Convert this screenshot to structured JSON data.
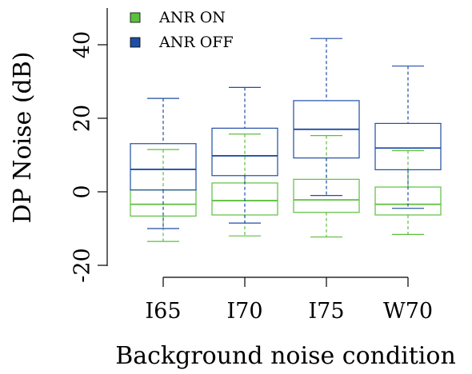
{
  "chart_data": {
    "type": "boxplot",
    "xlabel": "Background noise condition",
    "ylabel": "DP Noise (dB)",
    "ylim": [
      -21,
      50
    ],
    "yticks": [
      -20,
      0,
      20,
      40
    ],
    "categories": [
      "I65",
      "I70",
      "I75",
      "W70"
    ],
    "legend": {
      "position": "top-left"
    },
    "series": [
      {
        "name": "ANR ON",
        "color": "#5cbf3e",
        "boxes": [
          {
            "whisker_low": -13.5,
            "q1": -6.6,
            "median": -3.4,
            "q3": 0.5,
            "whisker_high": 11.5
          },
          {
            "whisker_low": -12.0,
            "q1": -6.3,
            "median": -2.4,
            "q3": 2.4,
            "whisker_high": 15.7
          },
          {
            "whisker_low": -12.3,
            "q1": -5.6,
            "median": -2.2,
            "q3": 3.4,
            "whisker_high": 15.3
          },
          {
            "whisker_low": -11.6,
            "q1": -6.3,
            "median": -3.4,
            "q3": 1.3,
            "whisker_high": 11.2
          }
        ]
      },
      {
        "name": "ANR OFF",
        "color": "#1f4ea3",
        "boxes": [
          {
            "whisker_low": -10.0,
            "q1": 0.5,
            "median": 6.1,
            "q3": 13.1,
            "whisker_high": 25.4
          },
          {
            "whisker_low": -8.5,
            "q1": 4.4,
            "median": 9.8,
            "q3": 17.3,
            "whisker_high": 28.4
          },
          {
            "whisker_low": -1.0,
            "q1": 9.2,
            "median": 17.0,
            "q3": 24.8,
            "whisker_high": 41.7
          },
          {
            "whisker_low": -4.5,
            "q1": 6.0,
            "median": 11.9,
            "q3": 18.6,
            "whisker_high": 34.2
          }
        ]
      }
    ]
  }
}
